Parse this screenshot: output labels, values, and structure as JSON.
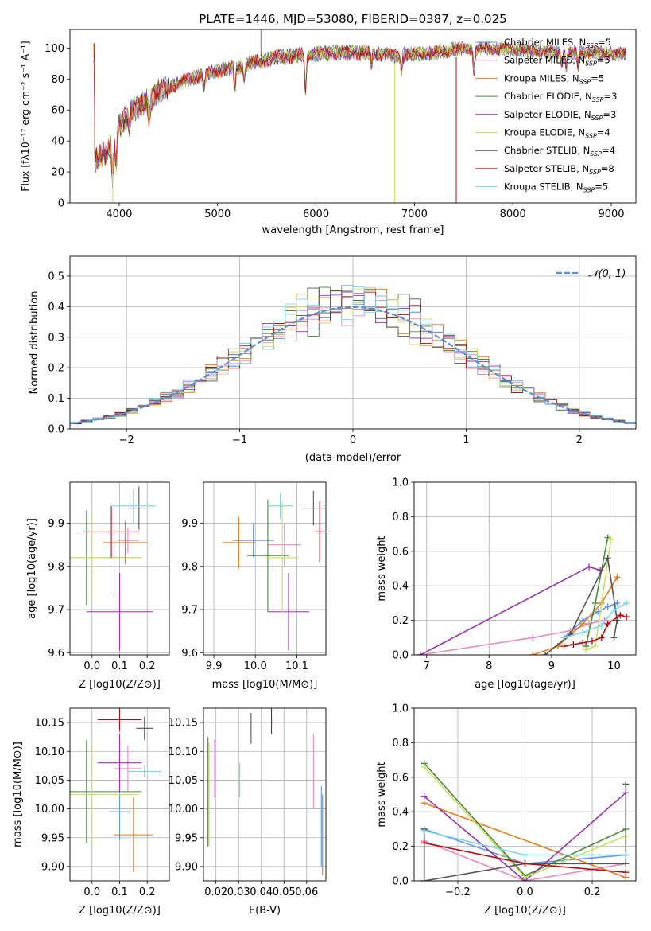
{
  "figure_title": "PLATE=1446, MJD=53080, FIBERID=0387, z=0.025",
  "colors": {
    "Chabrier MILES": "#6495ed",
    "Salpeter MILES": "#e88ac0",
    "Kroupa MILES": "#e07b1a",
    "Chabrier ELODIE": "#4a8a3a",
    "Salpeter ELODIE": "#9b30b0",
    "Kroupa ELODIE": "#c8e060",
    "Chabrier STELIB": "#555555",
    "Salpeter STELIB": "#b01010",
    "Kroupa STELIB": "#7fd3e8"
  },
  "chart_data": [
    {
      "type": "line",
      "title": "PLATE=1446, MJD=53080, FIBERID=0387, z=0.025",
      "xlabel": "wavelength [Angstrom, rest frame]",
      "ylabel": "Flux [fλ10⁻¹⁷ erg cm⁻² s⁻¹ A⁻¹]",
      "xlim": [
        3500,
        9250
      ],
      "ylim": [
        0,
        112
      ],
      "xticks": [
        4000,
        5000,
        6000,
        7000,
        8000,
        9000
      ],
      "yticks": [
        0,
        20,
        40,
        60,
        80,
        100
      ],
      "grid": false,
      "legend_position": "top-right",
      "legend": [
        {
          "label": "Chabrier MILES, N",
          "sub": "SSP",
          "tail": "=5"
        },
        {
          "label": "Salpeter MILES, N",
          "sub": "SSP",
          "tail": "=5"
        },
        {
          "label": "Kroupa MILES, N",
          "sub": "SSP",
          "tail": "=5"
        },
        {
          "label": "Chabrier ELODIE, N",
          "sub": "SSP",
          "tail": "=3"
        },
        {
          "label": "Salpeter ELODIE, N",
          "sub": "SSP",
          "tail": "=3"
        },
        {
          "label": "Kroupa ELODIE, N",
          "sub": "SSP",
          "tail": "=4"
        },
        {
          "label": "Chabrier STELIB, N",
          "sub": "SSP",
          "tail": "=4"
        },
        {
          "label": "Salpeter STELIB, N",
          "sub": "SSP",
          "tail": "=8"
        },
        {
          "label": "Kroupa STELIB, N",
          "sub": "SSP",
          "tail": "=5"
        }
      ],
      "continuum_points": [
        [
          3750,
          28
        ],
        [
          3850,
          32
        ],
        [
          3950,
          38
        ],
        [
          4000,
          50
        ],
        [
          4100,
          58
        ],
        [
          4250,
          64
        ],
        [
          4400,
          72
        ],
        [
          4600,
          77
        ],
        [
          4800,
          82
        ],
        [
          5000,
          85
        ],
        [
          5200,
          88
        ],
        [
          5400,
          91
        ],
        [
          5600,
          94
        ],
        [
          5800,
          95
        ],
        [
          6000,
          96
        ],
        [
          6200,
          97
        ],
        [
          6400,
          97
        ],
        [
          6600,
          96
        ],
        [
          6800,
          95
        ],
        [
          7000,
          96
        ],
        [
          7200,
          97
        ],
        [
          7400,
          99
        ],
        [
          7700,
          100
        ],
        [
          8000,
          99
        ],
        [
          8300,
          98
        ],
        [
          8600,
          97
        ],
        [
          8900,
          97
        ],
        [
          9100,
          96
        ]
      ],
      "absorption_features": [
        [
          3934,
          20
        ],
        [
          3969,
          18
        ],
        [
          4102,
          8
        ],
        [
          4304,
          12
        ],
        [
          4861,
          8
        ],
        [
          5175,
          14
        ],
        [
          5270,
          8
        ],
        [
          5893,
          22
        ],
        [
          6563,
          6
        ],
        [
          6867,
          10
        ],
        [
          7605,
          14
        ],
        [
          8498,
          8
        ],
        [
          8542,
          10
        ],
        [
          8662,
          9
        ]
      ],
      "drop_lines": [
        {
          "x": 3935,
          "series": "Kroupa ELODIE"
        },
        {
          "x": 6800,
          "series": "Kroupa ELODIE"
        },
        {
          "x": 7425,
          "series": "Salpeter STELIB"
        }
      ],
      "spike": {
        "x": 5440,
        "y": 112
      }
    },
    {
      "type": "histogram",
      "xlabel": "(data-model)/error",
      "ylabel": "Normed distribution",
      "xlim": [
        -2.5,
        2.5
      ],
      "ylim": [
        0,
        0.565
      ],
      "xticks": [
        -2,
        -1,
        0,
        1,
        2
      ],
      "yticks": [
        0.0,
        0.1,
        0.2,
        0.3,
        0.4,
        0.5
      ],
      "grid": true,
      "legend_position": "top-right",
      "legend": [
        "𝒩(0, 1)"
      ],
      "gaussian": {
        "mean": 0,
        "sigma": 1,
        "color": "#5b8ed8"
      },
      "bin_width": 0.1,
      "x_start": -2.5,
      "series_noise_seeds": [
        1,
        2,
        3,
        4,
        5,
        6,
        7,
        8,
        9
      ]
    },
    {
      "type": "errorbar",
      "xlabel": "Z [log10(Z/Z⊙)]",
      "ylabel": "age [log10(age/yr)]",
      "xlim": [
        -0.08,
        0.28
      ],
      "ylim": [
        9.595,
        9.995
      ],
      "xticks": [
        0.0,
        0.1,
        0.2
      ],
      "yticks": [
        9.6,
        9.7,
        9.8,
        9.9
      ],
      "grid": true,
      "points": [
        {
          "series": "Chabrier MILES",
          "x": 0.08,
          "y": 9.82,
          "xerr": 0.04,
          "yerr": 0.09
        },
        {
          "series": "Salpeter MILES",
          "x": 0.13,
          "y": 9.86,
          "xerr": 0.04,
          "yerr": 0.03
        },
        {
          "series": "Kroupa MILES",
          "x": 0.12,
          "y": 9.855,
          "xerr": 0.08,
          "yerr": 0.05
        },
        {
          "series": "Chabrier ELODIE",
          "x": -0.02,
          "y": 9.82,
          "xerr": 0.2,
          "yerr": 0.11
        },
        {
          "series": "Salpeter ELODIE",
          "x": 0.1,
          "y": 9.695,
          "xerr": 0.12,
          "yerr": 0.09
        },
        {
          "series": "Kroupa ELODIE",
          "x": 0.0,
          "y": 9.82,
          "xerr": 0.18,
          "yerr": 0.1
        },
        {
          "series": "Chabrier STELIB",
          "x": 0.17,
          "y": 9.935,
          "xerr": 0.04,
          "yerr": 0.05
        },
        {
          "series": "Salpeter STELIB",
          "x": 0.07,
          "y": 9.88,
          "xerr": 0.1,
          "yerr": 0.06
        },
        {
          "series": "Kroupa STELIB",
          "x": 0.15,
          "y": 9.94,
          "xerr": 0.08,
          "yerr": 0.04
        }
      ]
    },
    {
      "type": "errorbar",
      "xlabel": "mass [log10(M/M⊙)]",
      "ylabel": "",
      "xlim": [
        9.875,
        10.17
      ],
      "ylim": [
        9.595,
        9.995
      ],
      "xticks": [
        9.9,
        10.0,
        10.1
      ],
      "yticks": [
        9.6,
        9.7,
        9.8,
        9.9
      ],
      "grid": true,
      "points": [
        {
          "series": "Chabrier MILES",
          "x": 9.995,
          "y": 9.86,
          "xerr": 0.05,
          "yerr": 0.04
        },
        {
          "series": "Salpeter MILES",
          "x": 10.07,
          "y": 9.85,
          "xerr": 0.04,
          "yerr": 0.05
        },
        {
          "series": "Kroupa MILES",
          "x": 9.96,
          "y": 9.855,
          "xerr": 0.04,
          "yerr": 0.06
        },
        {
          "series": "Chabrier ELODIE",
          "x": 10.03,
          "y": 9.825,
          "xerr": 0.05,
          "yerr": 0.13
        },
        {
          "series": "Salpeter ELODIE",
          "x": 10.08,
          "y": 9.695,
          "xerr": 0.05,
          "yerr": 0.09
        },
        {
          "series": "Kroupa ELODIE",
          "x": 10.065,
          "y": 9.82,
          "xerr": 0.04,
          "yerr": 0.13
        },
        {
          "series": "Chabrier STELIB",
          "x": 10.14,
          "y": 9.935,
          "xerr": 0.03,
          "yerr": 0.04
        },
        {
          "series": "Salpeter STELIB",
          "x": 10.155,
          "y": 9.88,
          "xerr": 0.015,
          "yerr": 0.07
        },
        {
          "series": "Kroupa STELIB",
          "x": 10.06,
          "y": 9.94,
          "xerr": 0.03,
          "yerr": 0.03
        }
      ]
    },
    {
      "type": "line",
      "xlabel": "age [log10(age/yr)]",
      "ylabel": "mass weight",
      "xlim": [
        6.8,
        10.35
      ],
      "ylim": [
        0,
        1.0
      ],
      "xticks": [
        7,
        8,
        9,
        10
      ],
      "yticks": [
        0.0,
        0.2,
        0.4,
        0.6,
        0.8,
        1.0
      ],
      "grid": true,
      "series": [
        {
          "name": "Chabrier MILES",
          "x": [
            9.2,
            9.5,
            9.75,
            9.9,
            10.05
          ],
          "y": [
            0.1,
            0.2,
            0.25,
            0.28,
            0.3
          ]
        },
        {
          "name": "Salpeter MILES",
          "x": [
            6.9,
            8.7,
            9.3,
            9.6,
            9.85
          ],
          "y": [
            0.0,
            0.1,
            0.14,
            0.18,
            0.2
          ]
        },
        {
          "name": "Kroupa MILES",
          "x": [
            8.7,
            9.1,
            9.5,
            9.8,
            10.05
          ],
          "y": [
            0.0,
            0.05,
            0.18,
            0.3,
            0.45
          ]
        },
        {
          "name": "Chabrier ELODIE",
          "x": [
            9.55,
            9.7,
            9.9
          ],
          "y": [
            0.05,
            0.3,
            0.68
          ]
        },
        {
          "name": "Salpeter ELODIE",
          "x": [
            6.9,
            9.6,
            9.78
          ],
          "y": [
            0.0,
            0.51,
            0.49
          ]
        },
        {
          "name": "Kroupa ELODIE",
          "x": [
            9.55,
            9.7,
            9.95
          ],
          "y": [
            0.03,
            0.05,
            0.67
          ]
        },
        {
          "name": "Chabrier STELIB",
          "x": [
            8.9,
            9.3,
            9.9,
            10.05,
            10.0
          ],
          "y": [
            0.0,
            0.12,
            0.56,
            0.2,
            0.1
          ]
        },
        {
          "name": "Salpeter STELIB",
          "x": [
            9.2,
            9.35,
            9.5,
            9.65,
            9.8,
            9.9,
            10.1,
            10.2
          ],
          "y": [
            0.05,
            0.06,
            0.07,
            0.08,
            0.1,
            0.18,
            0.23,
            0.22
          ]
        },
        {
          "name": "Kroupa STELIB",
          "x": [
            9.2,
            9.5,
            9.8,
            10.0,
            10.2
          ],
          "y": [
            0.1,
            0.13,
            0.17,
            0.26,
            0.3
          ]
        }
      ]
    },
    {
      "type": "errorbar",
      "xlabel": "Z [log10(Z/Z⊙)]",
      "ylabel": "mass [log10(M/M⊙)]",
      "xlim": [
        -0.08,
        0.28
      ],
      "ylim": [
        9.875,
        10.175
      ],
      "xticks": [
        0.0,
        0.1,
        0.2
      ],
      "yticks": [
        9.9,
        9.95,
        10.0,
        10.05,
        10.1,
        10.15
      ],
      "grid": true,
      "points": [
        {
          "series": "Chabrier MILES",
          "x": 0.1,
          "y": 9.995,
          "xerr": 0.04,
          "yerr": 0.05
        },
        {
          "series": "Salpeter MILES",
          "x": 0.13,
          "y": 10.07,
          "xerr": 0.05,
          "yerr": 0.04
        },
        {
          "series": "Kroupa MILES",
          "x": 0.15,
          "y": 9.955,
          "xerr": 0.07,
          "yerr": 0.065
        },
        {
          "series": "Chabrier ELODIE",
          "x": -0.02,
          "y": 10.03,
          "xerr": 0.2,
          "yerr": 0.09
        },
        {
          "series": "Salpeter ELODIE",
          "x": 0.1,
          "y": 10.08,
          "xerr": 0.08,
          "yerr": 0.05
        },
        {
          "series": "Kroupa ELODIE",
          "x": 0.0,
          "y": 10.025,
          "xerr": 0.17,
          "yerr": 0.09
        },
        {
          "series": "Chabrier STELIB",
          "x": 0.19,
          "y": 10.14,
          "xerr": 0.03,
          "yerr": 0.02
        },
        {
          "series": "Salpeter STELIB",
          "x": 0.1,
          "y": 10.155,
          "xerr": 0.08,
          "yerr": 0.02
        },
        {
          "series": "Kroupa STELIB",
          "x": 0.19,
          "y": 10.065,
          "xerr": 0.06,
          "yerr": 0.01
        }
      ]
    },
    {
      "type": "errorbar",
      "xlabel": "E(B-V)",
      "ylabel": "",
      "xlim": [
        0.0145,
        0.0685
      ],
      "ylim": [
        9.875,
        10.175
      ],
      "xticks": [
        0.02,
        0.03,
        0.04,
        0.05,
        0.06
      ],
      "yticks": [
        9.9,
        9.95,
        10.0,
        10.05,
        10.1,
        10.15
      ],
      "grid": true,
      "points": [
        {
          "series": "Chabrier MILES",
          "x": 0.0665,
          "y": 9.97,
          "xerr": 0,
          "yerr": 0.07
        },
        {
          "series": "Salpeter MILES",
          "x": 0.063,
          "y": 10.065,
          "xerr": 0,
          "yerr": 0.065
        },
        {
          "series": "Kroupa MILES",
          "x": 0.067,
          "y": 9.955,
          "xerr": 0,
          "yerr": 0.07
        },
        {
          "series": "Chabrier ELODIE",
          "x": 0.0165,
          "y": 10.03,
          "xerr": 0,
          "yerr": 0.095
        },
        {
          "series": "Salpeter ELODIE",
          "x": 0.0195,
          "y": 10.07,
          "xerr": 0,
          "yerr": 0.05
        },
        {
          "series": "Kroupa ELODIE",
          "x": 0.017,
          "y": 10.025,
          "xerr": 0,
          "yerr": 0.09
        },
        {
          "series": "Chabrier STELIB",
          "x": 0.0355,
          "y": 10.14,
          "xerr": 0,
          "yerr": 0.027
        },
        {
          "series": "Salpeter STELIB",
          "x": 0.0445,
          "y": 10.155,
          "xerr": 0,
          "yerr": 0.025
        },
        {
          "series": "Kroupa STELIB",
          "x": 0.0305,
          "y": 10.05,
          "xerr": 0,
          "yerr": 0.03
        }
      ]
    },
    {
      "type": "line",
      "xlabel": "Z [log10(Z/Z⊙)]",
      "ylabel": "mass weight",
      "xlim": [
        -0.33,
        0.33
      ],
      "ylim": [
        0,
        1.0
      ],
      "xticks": [
        -0.2,
        0.0,
        0.2
      ],
      "yticks": [
        0.0,
        0.2,
        0.4,
        0.6,
        0.8,
        1.0
      ],
      "grid": true,
      "series": [
        {
          "name": "Chabrier MILES",
          "x": [
            -0.3,
            0.0,
            0.3
          ],
          "y": [
            0.3,
            0.1,
            0.15
          ]
        },
        {
          "name": "Salpeter MILES",
          "x": [
            -0.3,
            0.0,
            0.3
          ],
          "y": [
            0.23,
            0.0,
            0.1
          ]
        },
        {
          "name": "Kroupa MILES",
          "x": [
            -0.3,
            0.3
          ],
          "y": [
            0.45,
            0.02
          ]
        },
        {
          "name": "Chabrier ELODIE",
          "x": [
            -0.3,
            0.0,
            0.3
          ],
          "y": [
            0.68,
            0.03,
            0.3
          ]
        },
        {
          "name": "Salpeter ELODIE",
          "x": [
            -0.3,
            0.0,
            0.3
          ],
          "y": [
            0.49,
            0.0,
            0.51
          ]
        },
        {
          "name": "Kroupa ELODIE",
          "x": [
            -0.3,
            0.0,
            0.3
          ],
          "y": [
            0.66,
            0.02,
            0.26
          ]
        },
        {
          "name": "Chabrier STELIB",
          "x": [
            -0.3,
            -0.3,
            0.0,
            0.3,
            0.3
          ],
          "y": [
            0.3,
            0.0,
            0.1,
            0.1,
            0.56
          ]
        },
        {
          "name": "Salpeter STELIB",
          "x": [
            -0.3,
            0.0,
            0.3
          ],
          "y": [
            0.22,
            0.1,
            0.05
          ]
        },
        {
          "name": "Kroupa STELIB",
          "x": [
            -0.3,
            0.0,
            0.3
          ],
          "y": [
            0.29,
            0.15,
            0.15
          ]
        }
      ]
    }
  ]
}
